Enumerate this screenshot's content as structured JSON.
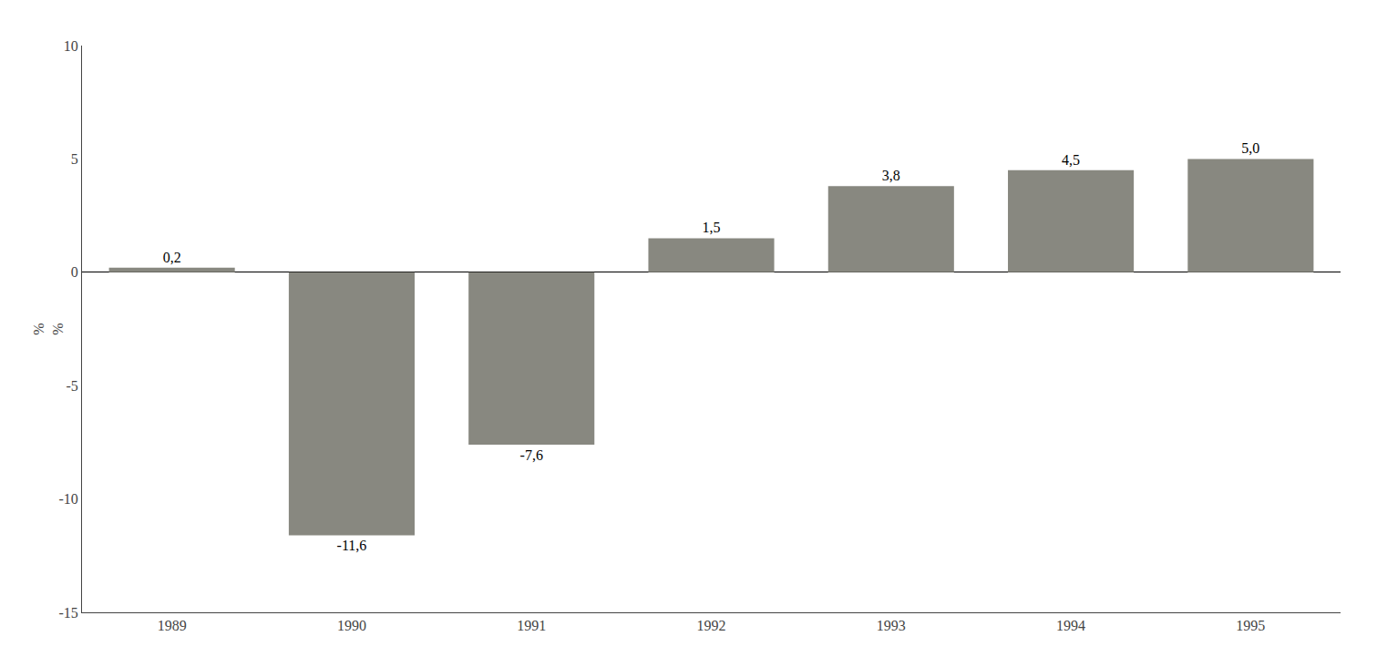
{
  "chart_data": {
    "type": "bar",
    "categories": [
      "1989",
      "1990",
      "1991",
      "1992",
      "1993",
      "1994",
      "1995"
    ],
    "values": [
      0.2,
      -11.6,
      -7.6,
      1.5,
      3.8,
      4.5,
      5.0
    ],
    "value_labels": [
      "0,2",
      "-11,6",
      "-7,6",
      "1,5",
      "3,8",
      "4,5",
      "5,0"
    ],
    "data_labels": true,
    "color": "#888880",
    "ylabel": "%\n%",
    "ylim": [
      -15,
      10
    ],
    "yticks": [
      -15,
      -10,
      -5,
      0,
      5,
      10
    ],
    "grid": false
  }
}
